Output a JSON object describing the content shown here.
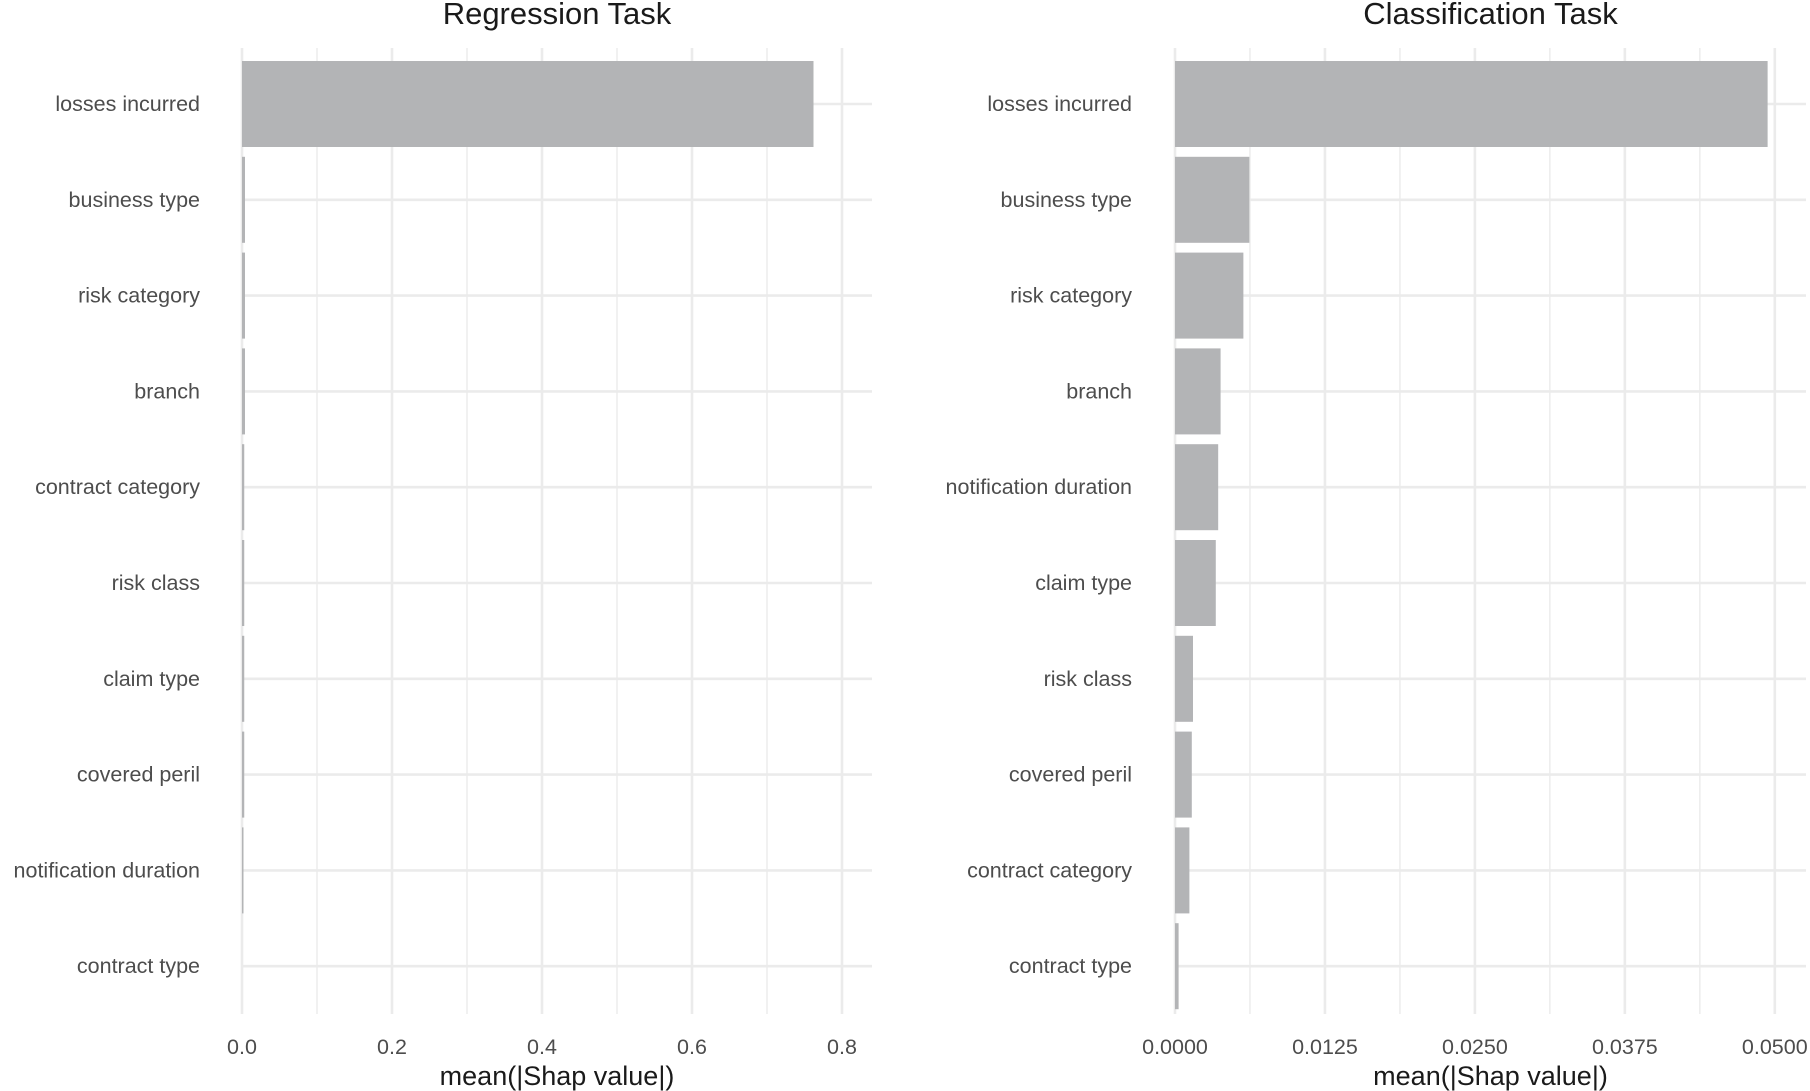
{
  "chart_data": [
    {
      "type": "bar",
      "orientation": "horizontal",
      "title": "Regression Task",
      "xlabel": "mean(|Shap value|)",
      "xlim": [
        0,
        0.84
      ],
      "ticks": [
        0.0,
        0.2,
        0.4,
        0.6,
        0.8
      ],
      "tick_labels": [
        "0.0",
        "0.2",
        "0.4",
        "0.6",
        "0.8"
      ],
      "grid": true,
      "categories": [
        "losses incurred",
        "business type",
        "risk category",
        "branch",
        "contract category",
        "risk class",
        "claim type",
        "covered peril",
        "notification duration",
        "contract type"
      ],
      "values": [
        0.762,
        0.004,
        0.004,
        0.004,
        0.003,
        0.003,
        0.003,
        0.003,
        0.002,
        0.0
      ]
    },
    {
      "type": "bar",
      "orientation": "horizontal",
      "title": "Classification Task",
      "xlabel": "mean(|Shap value|)",
      "xlim": [
        0,
        0.0526
      ],
      "ticks": [
        0.0,
        0.0125,
        0.025,
        0.0375,
        0.05
      ],
      "tick_labels": [
        "0.0000",
        "0.0125",
        "0.0250",
        "0.0375",
        "0.0500"
      ],
      "grid": true,
      "categories": [
        "losses incurred",
        "business type",
        "risk category",
        "branch",
        "notification duration",
        "claim type",
        "risk class",
        "covered peril",
        "contract category",
        "contract type"
      ],
      "values": [
        0.0494,
        0.0062,
        0.0057,
        0.0038,
        0.0036,
        0.0034,
        0.0015,
        0.0014,
        0.0012,
        0.0003
      ]
    }
  ]
}
